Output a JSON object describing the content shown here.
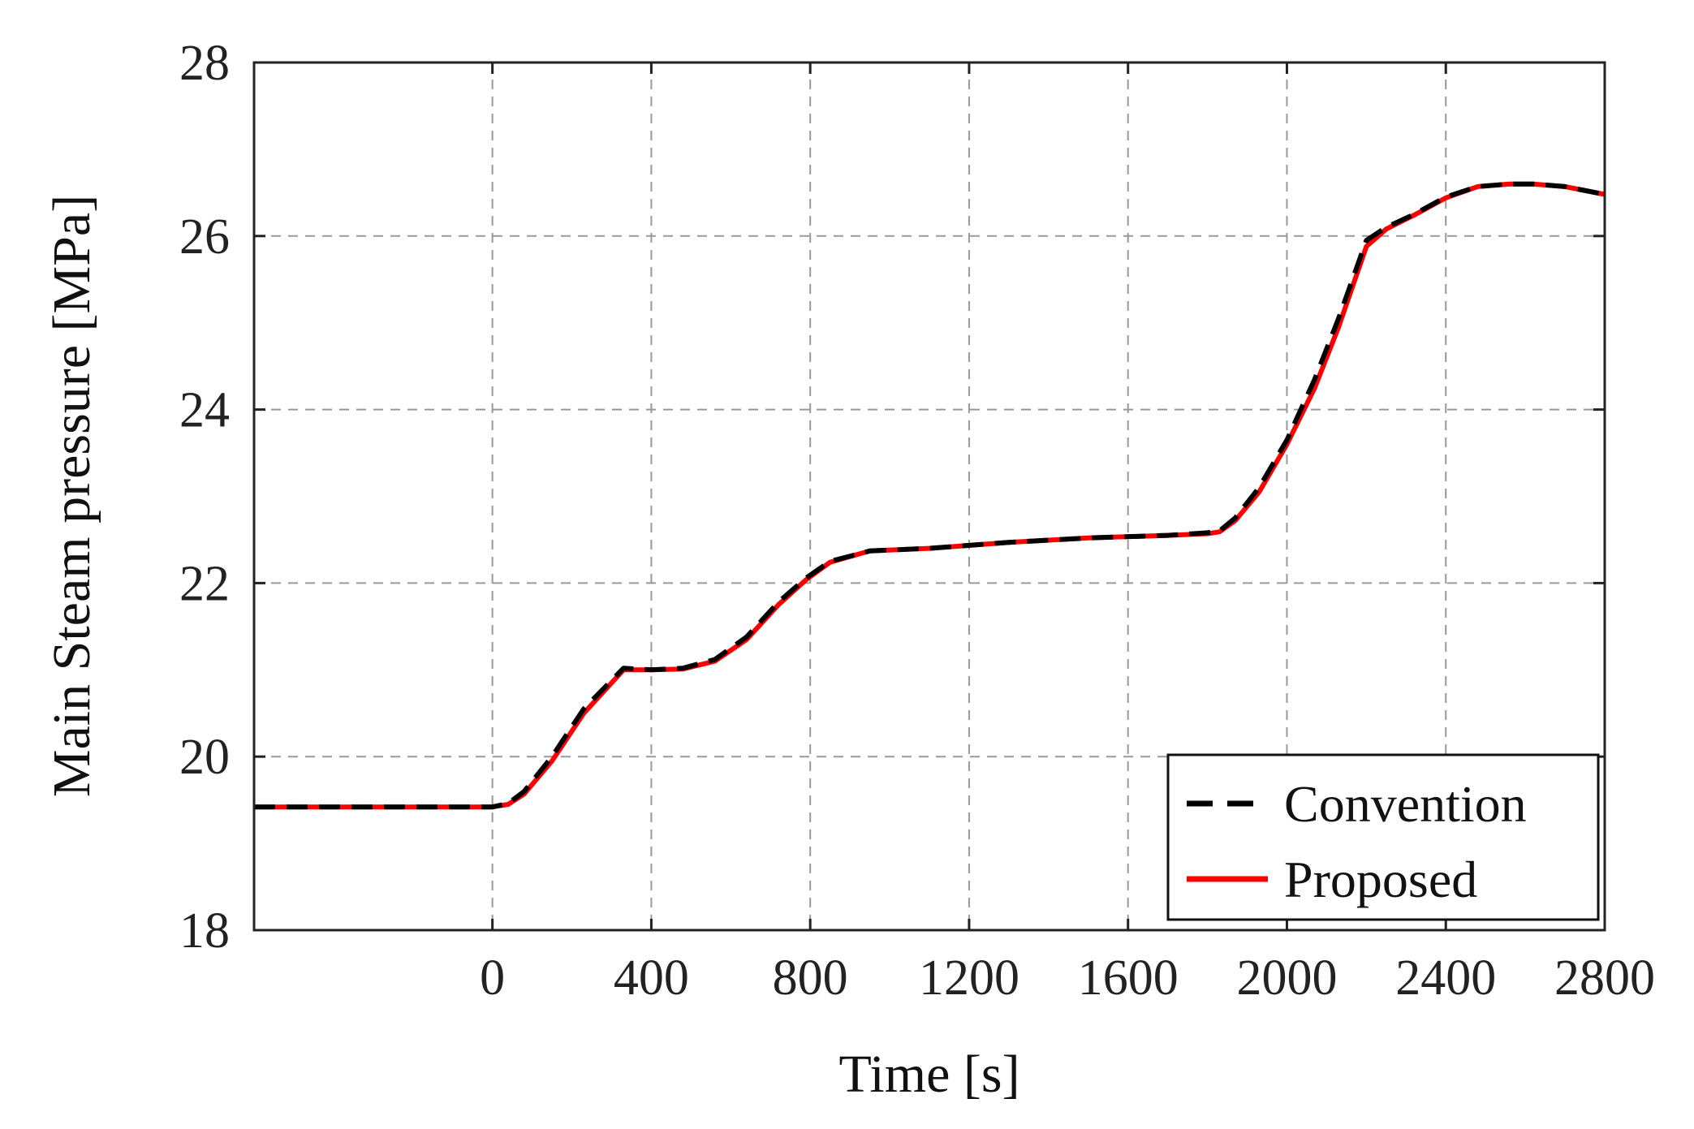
{
  "chart_data": {
    "type": "line",
    "title": "",
    "xlabel": "Time [s]",
    "ylabel": "Main Steam pressure [MPa]",
    "xlim": [
      -600,
      2800
    ],
    "ylim": [
      18,
      28
    ],
    "xticks": [
      0,
      400,
      800,
      1200,
      1600,
      2000,
      2400,
      2800
    ],
    "yticks": [
      18,
      20,
      22,
      24,
      26,
      28
    ],
    "xtick_labels": [
      "0",
      "400",
      "800",
      "1200",
      "1600",
      "2000",
      "2400",
      "2800"
    ],
    "ytick_labels": [
      "18",
      "20",
      "22",
      "24",
      "26",
      "28"
    ],
    "grid": true,
    "legend_position": "bottom-right",
    "series": [
      {
        "name": "Convention",
        "color": "#000000",
        "style": "dashed",
        "x": [
          -600,
          -400,
          -200,
          0,
          40,
          80,
          150,
          230,
          330,
          400,
          480,
          560,
          640,
          720,
          790,
          850,
          950,
          1100,
          1300,
          1500,
          1700,
          1800,
          1830,
          1870,
          1930,
          2000,
          2070,
          2130,
          2200,
          2250,
          2320,
          2400,
          2480,
          2560,
          2620,
          2700,
          2800
        ],
        "y": [
          19.42,
          19.42,
          19.42,
          19.42,
          19.46,
          19.6,
          20.0,
          20.55,
          21.02,
          21.0,
          21.02,
          21.12,
          21.38,
          21.78,
          22.06,
          22.25,
          22.37,
          22.4,
          22.47,
          22.52,
          22.55,
          22.58,
          22.6,
          22.75,
          23.1,
          23.65,
          24.35,
          25.05,
          25.95,
          26.1,
          26.25,
          26.45,
          26.57,
          26.6,
          26.6,
          26.57,
          26.48
        ]
      },
      {
        "name": "Proposed",
        "color": "#ff0000",
        "style": "solid",
        "x": [
          -600,
          -400,
          -200,
          0,
          40,
          80,
          150,
          230,
          330,
          400,
          480,
          560,
          640,
          720,
          790,
          850,
          950,
          1100,
          1300,
          1500,
          1700,
          1800,
          1830,
          1870,
          1930,
          2000,
          2070,
          2130,
          2200,
          2250,
          2320,
          2400,
          2480,
          2560,
          2620,
          2700,
          2800
        ],
        "y": [
          19.42,
          19.42,
          19.42,
          19.42,
          19.45,
          19.57,
          19.95,
          20.5,
          21.0,
          21.0,
          21.01,
          21.1,
          21.35,
          21.75,
          22.04,
          22.24,
          22.37,
          22.4,
          22.47,
          22.52,
          22.55,
          22.57,
          22.59,
          22.72,
          23.05,
          23.6,
          24.25,
          24.95,
          25.88,
          26.08,
          26.24,
          26.44,
          26.57,
          26.6,
          26.6,
          26.57,
          26.48
        ]
      }
    ]
  }
}
